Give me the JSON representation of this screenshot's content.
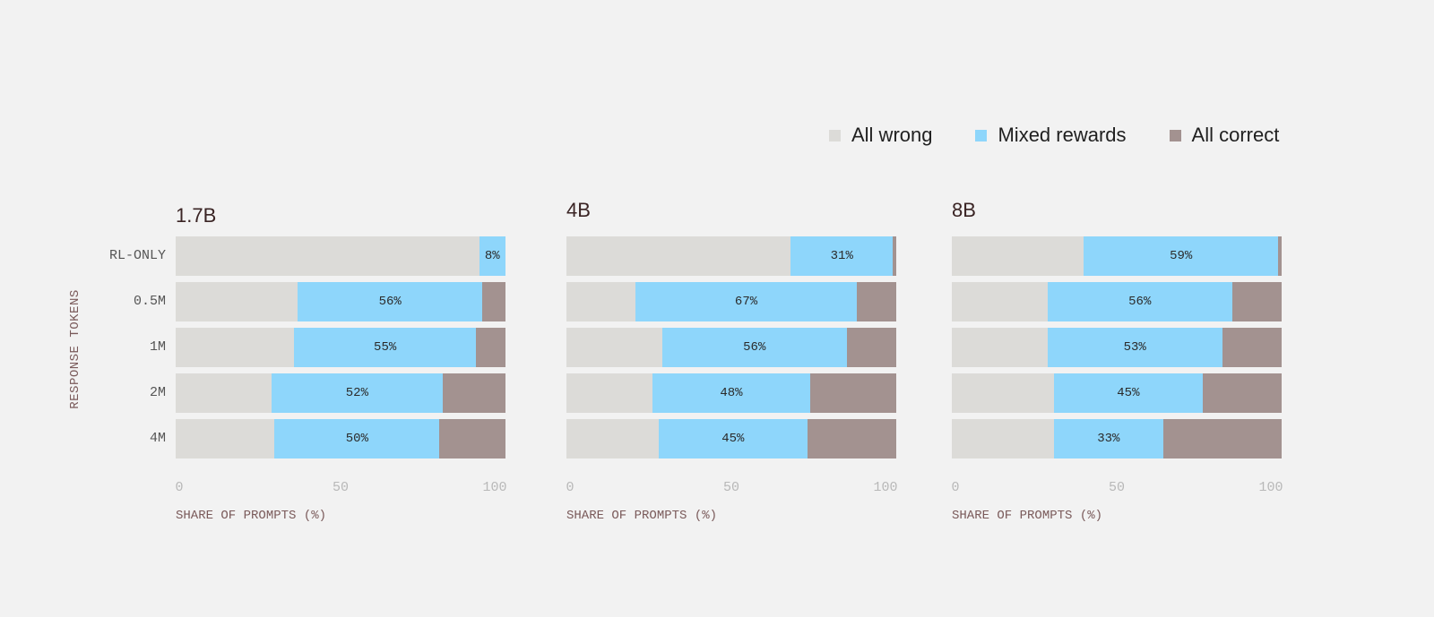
{
  "chart_data": {
    "type": "bar",
    "orientation": "horizontal",
    "stacked": true,
    "legend": {
      "placement": "top-right",
      "entries": [
        {
          "name": "All wrong",
          "color": "#dcdbd8"
        },
        {
          "name": "Mixed rewards",
          "color": "#8ed6fb"
        },
        {
          "name": "All correct",
          "color": "#a39290"
        }
      ]
    },
    "ylabel": "RESPONSE TOKENS",
    "xlabel": "SHARE OF PROMPTS (%)",
    "categories": [
      "RL-ONLY",
      "0.5M",
      "1M",
      "2M",
      "4M"
    ],
    "xlim": [
      0,
      100
    ],
    "xticks": [
      "0",
      "50",
      "100"
    ],
    "grid": false,
    "panels": [
      {
        "title": "1.7B",
        "series": [
          {
            "name": "All wrong",
            "values": [
              92,
              37,
              36,
              29,
              30
            ]
          },
          {
            "name": "Mixed rewards",
            "values": [
              8,
              56,
              55,
              52,
              50
            ],
            "labels": [
              "8%",
              "56%",
              "55%",
              "52%",
              "50%"
            ]
          },
          {
            "name": "All correct",
            "values": [
              0,
              7,
              9,
              19,
              20
            ]
          }
        ]
      },
      {
        "title": "4B",
        "series": [
          {
            "name": "All wrong",
            "values": [
              68,
              21,
              29,
              26,
              28
            ]
          },
          {
            "name": "Mixed rewards",
            "values": [
              31,
              67,
              56,
              48,
              45
            ],
            "labels": [
              "31%",
              "67%",
              "56%",
              "48%",
              "45%"
            ]
          },
          {
            "name": "All correct",
            "values": [
              1,
              12,
              15,
              26,
              27
            ]
          }
        ]
      },
      {
        "title": "8B",
        "series": [
          {
            "name": "All wrong",
            "values": [
              40,
              29,
              29,
              31,
              31
            ]
          },
          {
            "name": "Mixed rewards",
            "values": [
              59,
              56,
              53,
              45,
              33
            ],
            "labels": [
              "59%",
              "56%",
              "53%",
              "45%",
              "33%"
            ]
          },
          {
            "name": "All correct",
            "values": [
              1,
              15,
              18,
              24,
              36
            ]
          }
        ]
      }
    ]
  }
}
